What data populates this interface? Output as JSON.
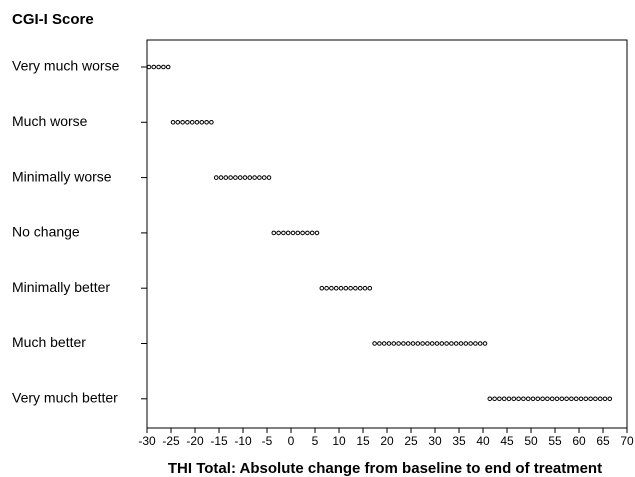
{
  "chart_data": {
    "type": "dotplot",
    "ylabel": "CGI-I Score",
    "xlabel": "THI Total: Absolute change from baseline to end of treatment",
    "categories": [
      "Very much worse",
      "Much worse",
      "Minimally worse",
      "No change",
      "Minimally better",
      "Much better",
      "Very much better"
    ],
    "values": [
      [
        -30,
        -29,
        -28,
        -27,
        -26
      ],
      [
        -25,
        -24,
        -23,
        -22,
        -21,
        -20,
        -19,
        -18,
        -17
      ],
      [
        -16,
        -15,
        -14,
        -13,
        -12,
        -11,
        -10,
        -9,
        -8,
        -7,
        -6,
        -5
      ],
      [
        -4,
        -3,
        -2,
        -1,
        0,
        1,
        2,
        3,
        4,
        5
      ],
      [
        6,
        7,
        8,
        9,
        10,
        11,
        12,
        13,
        14,
        15,
        16
      ],
      [
        17,
        18,
        19,
        20,
        21,
        22,
        23,
        24,
        25,
        26,
        27,
        28,
        29,
        30,
        31,
        32,
        33,
        34,
        35,
        36,
        37,
        38,
        39,
        40
      ],
      [
        41,
        42,
        43,
        44,
        45,
        46,
        47,
        48,
        49,
        50,
        51,
        52,
        53,
        54,
        55,
        56,
        57,
        58,
        59,
        60,
        61,
        62,
        63,
        64,
        65,
        66
      ]
    ],
    "color": "#000000",
    "xlim": [
      -30,
      70
    ],
    "xticks": [
      -30,
      -25,
      -20,
      -15,
      -10,
      -5,
      0,
      5,
      10,
      15,
      20,
      25,
      30,
      35,
      40,
      45,
      50,
      55,
      60,
      65,
      70
    ]
  }
}
